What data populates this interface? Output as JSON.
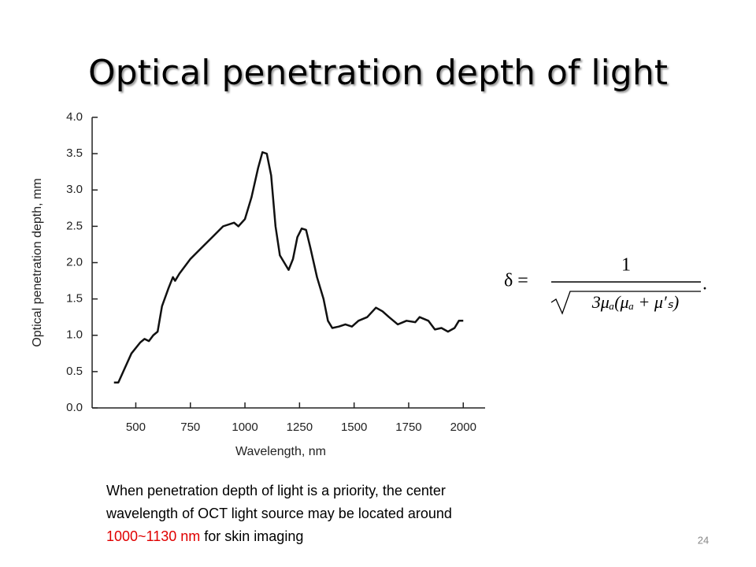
{
  "slide": {
    "title": "Optical penetration depth of light",
    "caption_line1": "When penetration depth of light is a priority, the center",
    "caption_line2": "wavelength of OCT light source may be located around",
    "caption_highlight": "1000~1130 nm",
    "caption_rest": " for skin imaging",
    "page_number": "24",
    "formula_lhs": "δ =",
    "formula_numerator": "1",
    "formula_denominator": "3μₐ(μₐ + μ′ₛ)",
    "formula_end": "."
  },
  "chart_data": {
    "type": "line",
    "x_label": "Wavelength, nm",
    "y_label": "Optical penetration depth, mm",
    "x": [
      400,
      420,
      450,
      480,
      520,
      540,
      560,
      580,
      600,
      620,
      650,
      670,
      680,
      700,
      750,
      800,
      850,
      900,
      950,
      970,
      1000,
      1030,
      1060,
      1080,
      1100,
      1120,
      1140,
      1160,
      1200,
      1220,
      1240,
      1260,
      1280,
      1300,
      1330,
      1360,
      1380,
      1400,
      1430,
      1460,
      1490,
      1520,
      1560,
      1600,
      1630,
      1660,
      1700,
      1740,
      1780,
      1800,
      1840,
      1870,
      1900,
      1930,
      1960,
      1980,
      2000
    ],
    "series": [
      {
        "name": "Optical penetration depth",
        "color": "#111111",
        "values": [
          0.35,
          0.35,
          0.55,
          0.75,
          0.9,
          0.95,
          0.92,
          1.0,
          1.05,
          1.4,
          1.65,
          1.8,
          1.75,
          1.85,
          2.05,
          2.2,
          2.35,
          2.5,
          2.55,
          2.5,
          2.6,
          2.9,
          3.3,
          3.52,
          3.5,
          3.2,
          2.5,
          2.1,
          1.9,
          2.05,
          2.35,
          2.47,
          2.45,
          2.2,
          1.8,
          1.5,
          1.2,
          1.1,
          1.12,
          1.15,
          1.12,
          1.2,
          1.25,
          1.38,
          1.33,
          1.25,
          1.15,
          1.2,
          1.18,
          1.25,
          1.2,
          1.08,
          1.1,
          1.05,
          1.1,
          1.2,
          1.2
        ]
      }
    ],
    "xlim": [
      300,
      2100
    ],
    "xticks": [
      500,
      750,
      1000,
      1250,
      1500,
      1750,
      2000
    ],
    "ylim": [
      0,
      4
    ],
    "yticks": [
      {
        "value": 0,
        "label": "0.0"
      },
      0.5,
      {
        "value": 1,
        "label": "1.0"
      },
      1.5,
      {
        "value": 2,
        "label": "2.0"
      },
      2.5,
      {
        "value": 3,
        "label": "3.0"
      },
      3.5,
      {
        "value": 4,
        "label": "4.0"
      }
    ],
    "grid": false
  }
}
